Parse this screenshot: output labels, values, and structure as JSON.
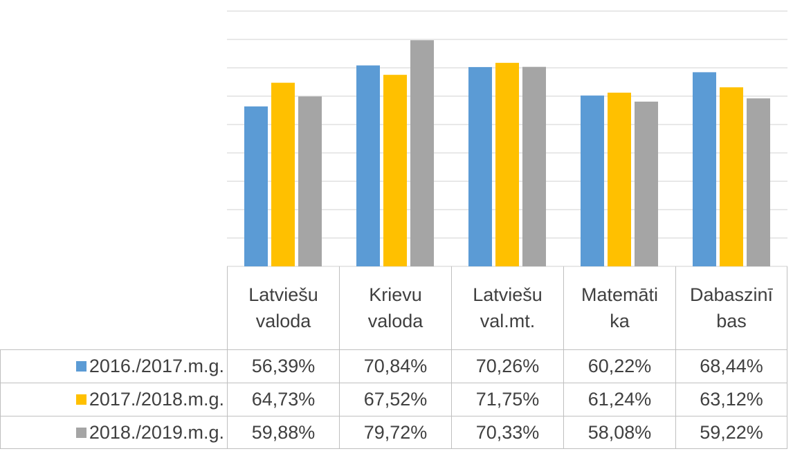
{
  "chart_data": {
    "type": "bar",
    "categories": [
      "Latviešu valoda",
      "Krievu valoda",
      "Latviešu val.mt.",
      "Matemātika",
      "Dabaszinības"
    ],
    "series": [
      {
        "name": "2016./2017.m.g.",
        "color": "#5b9bd5",
        "values": [
          56.39,
          70.84,
          70.26,
          60.22,
          68.44
        ],
        "value_labels": [
          "56,39%",
          "70,84%",
          "70,26%",
          "60,22%",
          "68,44%"
        ]
      },
      {
        "name": "2017./2018.m.g.",
        "color": "#ffc000",
        "values": [
          64.73,
          67.52,
          71.75,
          61.24,
          63.12
        ],
        "value_labels": [
          "64,73%",
          "67,52%",
          "71,75%",
          "61,24%",
          "63,12%"
        ]
      },
      {
        "name": "2018./2019.m.g.",
        "color": "#a5a5a5",
        "values": [
          59.88,
          79.72,
          70.33,
          58.08,
          59.22
        ],
        "value_labels": [
          "59,88%",
          "79,72%",
          "70,33%",
          "58,08%",
          "59,22%"
        ]
      }
    ],
    "ylim": [
      0,
      90
    ],
    "yticks": [
      0,
      10,
      20,
      30,
      40,
      50,
      60,
      70,
      80,
      90
    ],
    "grid": true,
    "data_table": true
  }
}
